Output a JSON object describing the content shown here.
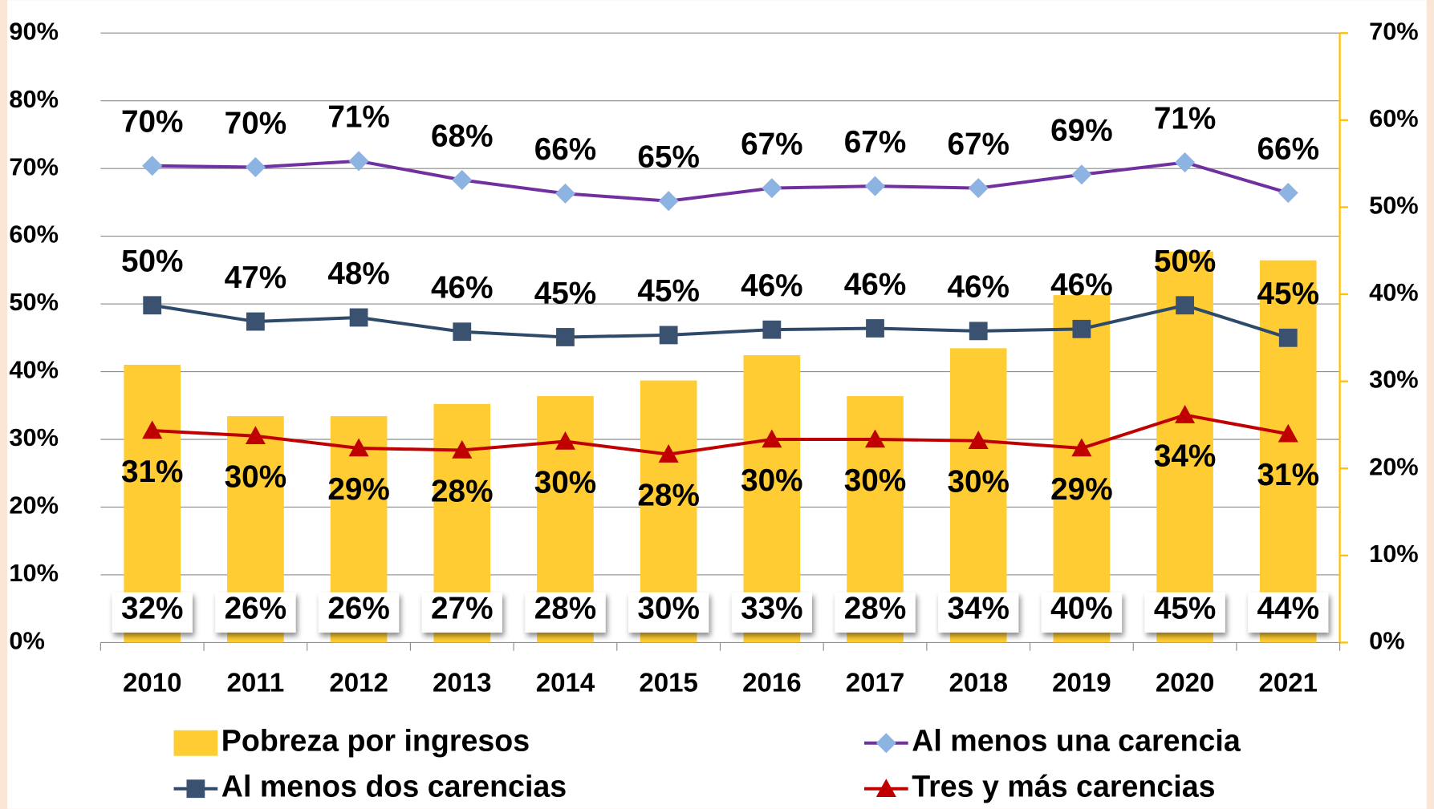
{
  "chart_data": {
    "type": "bar",
    "categories": [
      "2010",
      "2011",
      "2012",
      "2013",
      "2014",
      "2015",
      "2016",
      "2017",
      "2018",
      "2019",
      "2020",
      "2021"
    ],
    "ylim": [
      0,
      90
    ],
    "yticks": [
      {
        "value": 0,
        "label": "0%"
      },
      {
        "value": 10,
        "label": "10%"
      },
      {
        "value": 20,
        "label": "20%"
      },
      {
        "value": 30,
        "label": "30%"
      },
      {
        "value": 40,
        "label": "40%"
      },
      {
        "value": 50,
        "label": "50%"
      },
      {
        "value": 60,
        "label": "60%"
      },
      {
        "value": 70,
        "label": "70%"
      },
      {
        "value": 80,
        "label": "80%"
      },
      {
        "value": 90,
        "label": "90%"
      }
    ],
    "y2lim": [
      0,
      70
    ],
    "y2ticks": [
      {
        "value": 0,
        "label": "0%"
      },
      {
        "value": 10,
        "label": "10%"
      },
      {
        "value": 20,
        "label": "20%"
      },
      {
        "value": 30,
        "label": "30%"
      },
      {
        "value": 40,
        "label": "40%"
      },
      {
        "value": 50,
        "label": "50%"
      },
      {
        "value": 60,
        "label": "60%"
      },
      {
        "value": 70,
        "label": "70%"
      }
    ],
    "grid": true,
    "series": [
      {
        "name": "Pobreza por ingresos",
        "type": "bar",
        "axis": "y2",
        "color": "#ffcc33",
        "values": [
          31.9,
          26.0,
          26.0,
          27.4,
          28.3,
          30.1,
          33.0,
          28.3,
          33.8,
          39.9,
          44.9,
          43.9
        ],
        "value_labels": [
          "32%",
          "26%",
          "26%",
          "27%",
          "28%",
          "30%",
          "33%",
          "28%",
          "34%",
          "40%",
          "45%",
          "44%"
        ]
      },
      {
        "name": "Al menos una carencia",
        "type": "line",
        "marker": "diamond",
        "color": "#7030a0",
        "marker_color": "#8db3e2",
        "values": [
          70.4,
          70.2,
          71.1,
          68.3,
          66.3,
          65.2,
          67.1,
          67.4,
          67.1,
          69.1,
          70.9,
          66.4
        ],
        "value_labels": [
          "70%",
          "70%",
          "71%",
          "68%",
          "66%",
          "65%",
          "67%",
          "67%",
          "67%",
          "69%",
          "71%",
          "66%"
        ]
      },
      {
        "name": "Al menos dos carencias",
        "type": "line",
        "marker": "square",
        "color": "#2e4a6b",
        "marker_color": "#3b5170",
        "values": [
          49.8,
          47.4,
          48.0,
          45.9,
          45.1,
          45.4,
          46.2,
          46.4,
          46.0,
          46.3,
          49.8,
          45.0
        ],
        "value_labels": [
          "50%",
          "47%",
          "48%",
          "46%",
          "45%",
          "45%",
          "46%",
          "46%",
          "46%",
          "46%",
          "50%",
          "45%"
        ]
      },
      {
        "name": "Tres y más carencias",
        "type": "line",
        "marker": "triangle",
        "color": "#c00000",
        "marker_color": "#c00000",
        "values": [
          31.3,
          30.5,
          28.7,
          28.4,
          29.7,
          27.8,
          30.0,
          30.0,
          29.8,
          28.7,
          33.6,
          30.8
        ],
        "value_labels": [
          "31%",
          "30%",
          "29%",
          "28%",
          "30%",
          "28%",
          "30%",
          "30%",
          "30%",
          "29%",
          "34%",
          "31%"
        ]
      }
    ]
  }
}
